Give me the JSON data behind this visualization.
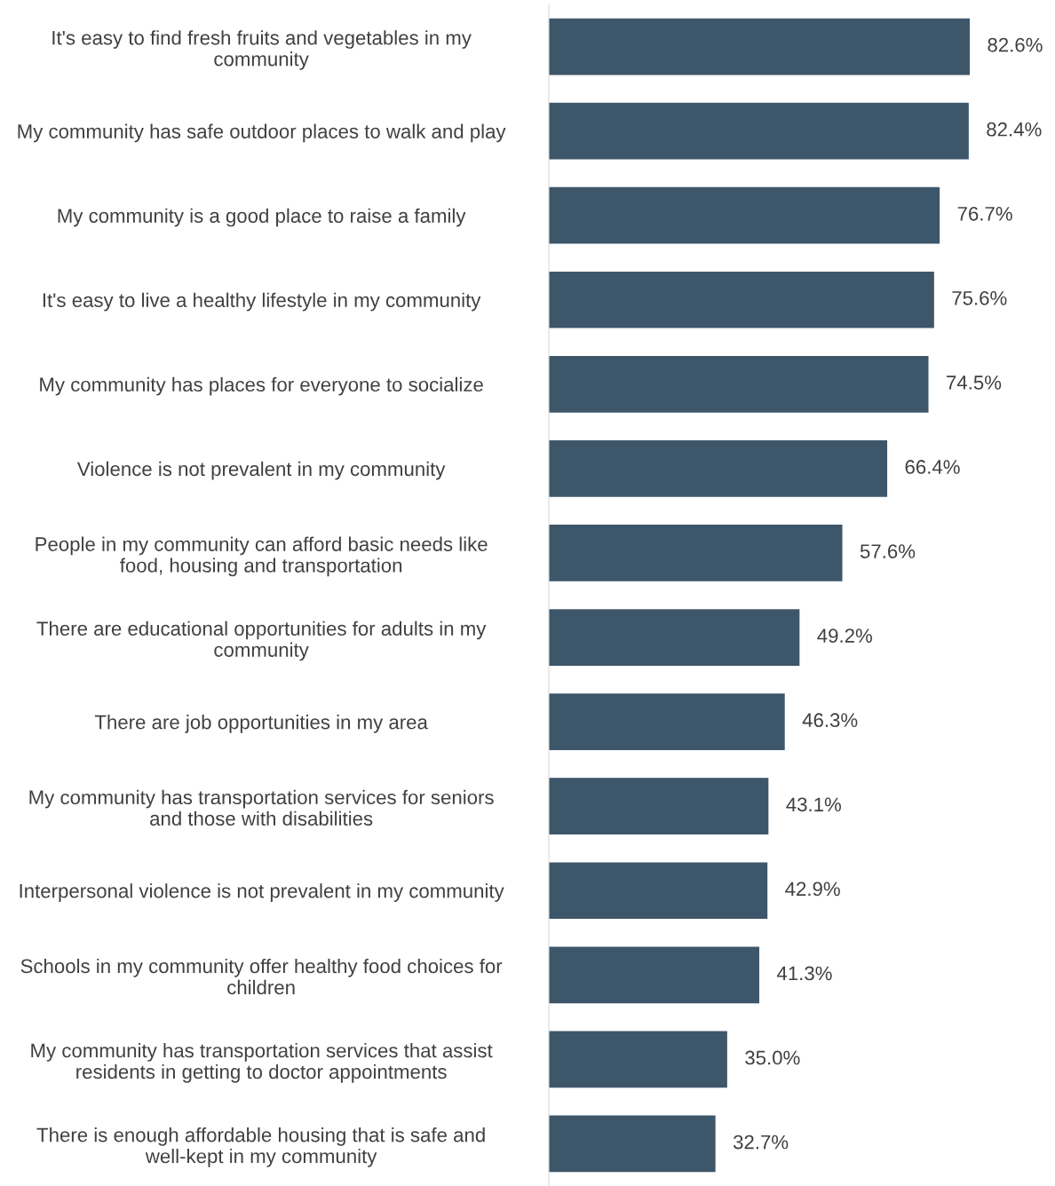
{
  "chart_data": {
    "type": "bar",
    "orientation": "horizontal",
    "categories": [
      "It's easy to find fresh fruits and vegetables in my community",
      "My community has safe outdoor places to walk and play",
      "My community is a good place to raise a family",
      "It's easy to live a healthy lifestyle in my community",
      "My community has places for everyone to socialize",
      "Violence is not prevalent in my community",
      "People in my community can afford basic needs like food, housing and transportation",
      "There are educational opportunities for adults in my community",
      "There are job opportunities in my area",
      "My community has transportation services for seniors and those with disabilities",
      "Interpersonal violence is not prevalent in my community",
      "Schools in my community offer healthy food choices for children",
      "My community has transportation services that assist residents in getting to doctor appointments",
      "There is enough affordable housing that is safe and well-kept in my community"
    ],
    "values": [
      82.6,
      82.4,
      76.7,
      75.6,
      74.5,
      66.4,
      57.6,
      49.2,
      46.3,
      43.1,
      42.9,
      41.3,
      35.0,
      32.7
    ],
    "value_labels": [
      "82.6%",
      "82.4%",
      "76.7%",
      "75.6%",
      "74.5%",
      "66.4%",
      "57.6%",
      "49.2%",
      "46.3%",
      "43.1%",
      "42.9%",
      "41.3%",
      "35.0%",
      "32.7%"
    ],
    "color": "#3d566a",
    "tick_labels": "y",
    "grid": false,
    "legend": false
  }
}
